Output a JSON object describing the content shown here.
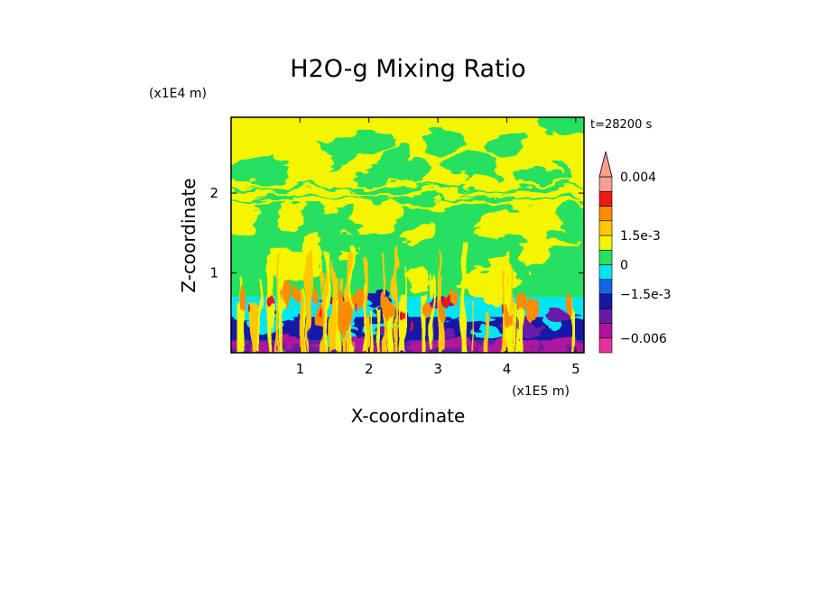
{
  "chart_data": {
    "type": "heatmap",
    "title": "H2O-g Mixing Ratio",
    "xlabel": "X-coordinate",
    "ylabel": "Z-coordinate",
    "x_unit": "(x1E5 m)",
    "y_unit": "(x1E4 m)",
    "time_label": "t=28200 s",
    "xlim": [
      0,
      5.12
    ],
    "ylim": [
      0,
      2.95
    ],
    "x_ticks": [
      "1",
      "2",
      "3",
      "4",
      "5"
    ],
    "x_tick_values": [
      1,
      2,
      3,
      4,
      5
    ],
    "y_ticks": [
      "1",
      "2"
    ],
    "y_tick_values": [
      1,
      2
    ],
    "colorbar": {
      "extend": "both",
      "labels": [
        "0.004",
        "1.5e-3",
        "0",
        "−1.5e-3",
        "−0.006"
      ],
      "label_values": [
        0.004,
        0.0015,
        0,
        -0.0015,
        -0.006
      ],
      "bins": [
        {
          "lo": -0.0075,
          "hi": -0.006,
          "color": "#e6329f"
        },
        {
          "lo": -0.006,
          "hi": -0.0045,
          "color": "#b0149f"
        },
        {
          "lo": -0.0045,
          "hi": -0.003,
          "color": "#6a1aa8"
        },
        {
          "lo": -0.003,
          "hi": -0.0015,
          "color": "#1818a8"
        },
        {
          "lo": -0.0015,
          "hi": -0.00075,
          "color": "#1464e6"
        },
        {
          "lo": -0.00075,
          "hi": 0,
          "color": "#00e6f0"
        },
        {
          "lo": 0,
          "hi": 0.00075,
          "color": "#28e060"
        },
        {
          "lo": 0.00075,
          "hi": 0.0015,
          "color": "#f5f500"
        },
        {
          "lo": 0.0015,
          "hi": 0.00225,
          "color": "#ffc800"
        },
        {
          "lo": 0.00225,
          "hi": 0.003,
          "color": "#ff8c00"
        },
        {
          "lo": 0.003,
          "hi": 0.0035,
          "color": "#f01818"
        },
        {
          "lo": 0.0035,
          "hi": 0.004,
          "color": "#f5a08c"
        }
      ]
    },
    "field_layers": [
      {
        "z_range": [
          0,
          0.15
        ],
        "dominant": -0.0045
      },
      {
        "z_range": [
          0.15,
          0.45
        ],
        "dominant": -0.002
      },
      {
        "z_range": [
          0.45,
          0.7
        ],
        "dominant": -0.0005
      },
      {
        "z_range": [
          0.7,
          1.9
        ],
        "dominant": 0.0004
      },
      {
        "z_range": [
          1.9,
          2.15
        ],
        "dominant": 0.001
      },
      {
        "z_range": [
          2.15,
          2.95
        ],
        "dominant": 0.0009
      }
    ]
  }
}
